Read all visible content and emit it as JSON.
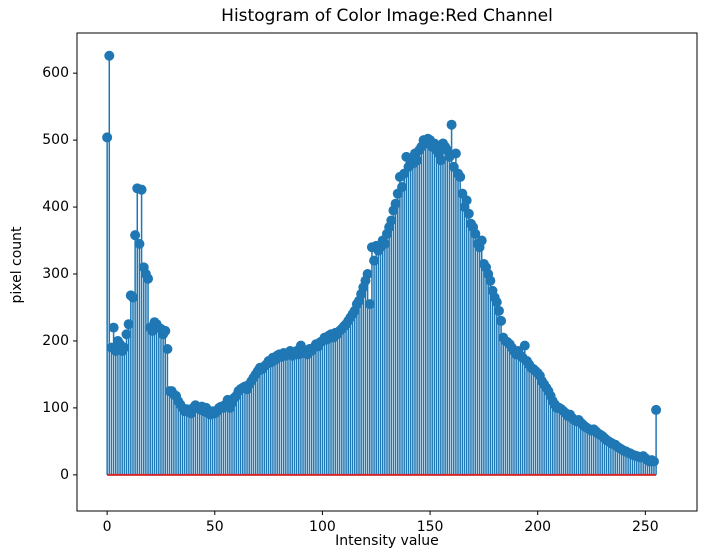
{
  "chart_data": {
    "type": "stem",
    "title": "Histogram of Color Image:Red Channel",
    "xlabel": "Intensity value",
    "ylabel": "pixel count",
    "color": "#1f77b4",
    "baseline_color": "#d62728",
    "xlim": [
      -14,
      274
    ],
    "ylim": [
      -54,
      660
    ],
    "xticks": [
      0,
      50,
      100,
      150,
      200,
      250
    ],
    "yticks": [
      0,
      100,
      200,
      300,
      400,
      500,
      600
    ],
    "grid": false,
    "values": [
      504,
      626,
      190,
      220,
      185,
      200,
      195,
      185,
      190,
      210,
      225,
      268,
      265,
      358,
      428,
      345,
      426,
      310,
      300,
      293,
      220,
      215,
      228,
      225,
      220,
      218,
      210,
      215,
      188,
      125,
      125,
      120,
      118,
      110,
      105,
      100,
      95,
      98,
      95,
      92,
      100,
      104,
      100,
      98,
      102,
      95,
      100,
      92,
      90,
      95,
      92,
      95,
      100,
      102,
      100,
      105,
      112,
      100,
      108,
      115,
      118,
      125,
      128,
      130,
      132,
      128,
      135,
      140,
      145,
      150,
      155,
      160,
      158,
      162,
      165,
      170,
      168,
      175,
      172,
      178,
      180,
      176,
      182,
      178,
      180,
      185,
      178,
      182,
      185,
      180,
      193,
      182,
      185,
      180,
      188,
      185,
      190,
      195,
      192,
      198,
      200,
      205,
      202,
      208,
      210,
      205,
      212,
      210,
      215,
      218,
      222,
      225,
      230,
      235,
      240,
      245,
      255,
      260,
      270,
      280,
      290,
      300,
      255,
      340,
      320,
      342,
      335,
      340,
      350,
      345,
      360,
      370,
      380,
      395,
      405,
      420,
      445,
      430,
      450,
      475,
      460,
      470,
      465,
      480,
      470,
      485,
      490,
      500,
      495,
      502,
      500,
      490,
      495,
      485,
      480,
      470,
      495,
      490,
      485,
      475,
      523,
      460,
      480,
      450,
      445,
      420,
      400,
      410,
      390,
      375,
      370,
      360,
      345,
      340,
      350,
      315,
      310,
      300,
      290,
      275,
      265,
      258,
      245,
      230,
      205,
      200,
      198,
      195,
      190,
      185,
      180,
      185,
      178,
      175,
      193,
      170,
      165,
      160,
      158,
      155,
      152,
      148,
      140,
      135,
      130,
      125,
      118,
      110,
      105,
      100,
      100,
      98,
      95,
      92,
      88,
      90,
      85,
      82,
      80,
      82,
      78,
      75,
      72,
      70,
      68,
      66,
      68,
      65,
      62,
      60,
      58,
      55,
      52,
      50,
      48,
      46,
      45,
      42,
      40,
      38,
      36,
      35,
      33,
      32,
      30,
      29,
      28,
      27,
      26,
      28,
      25,
      22,
      20,
      22,
      20,
      97
    ]
  }
}
